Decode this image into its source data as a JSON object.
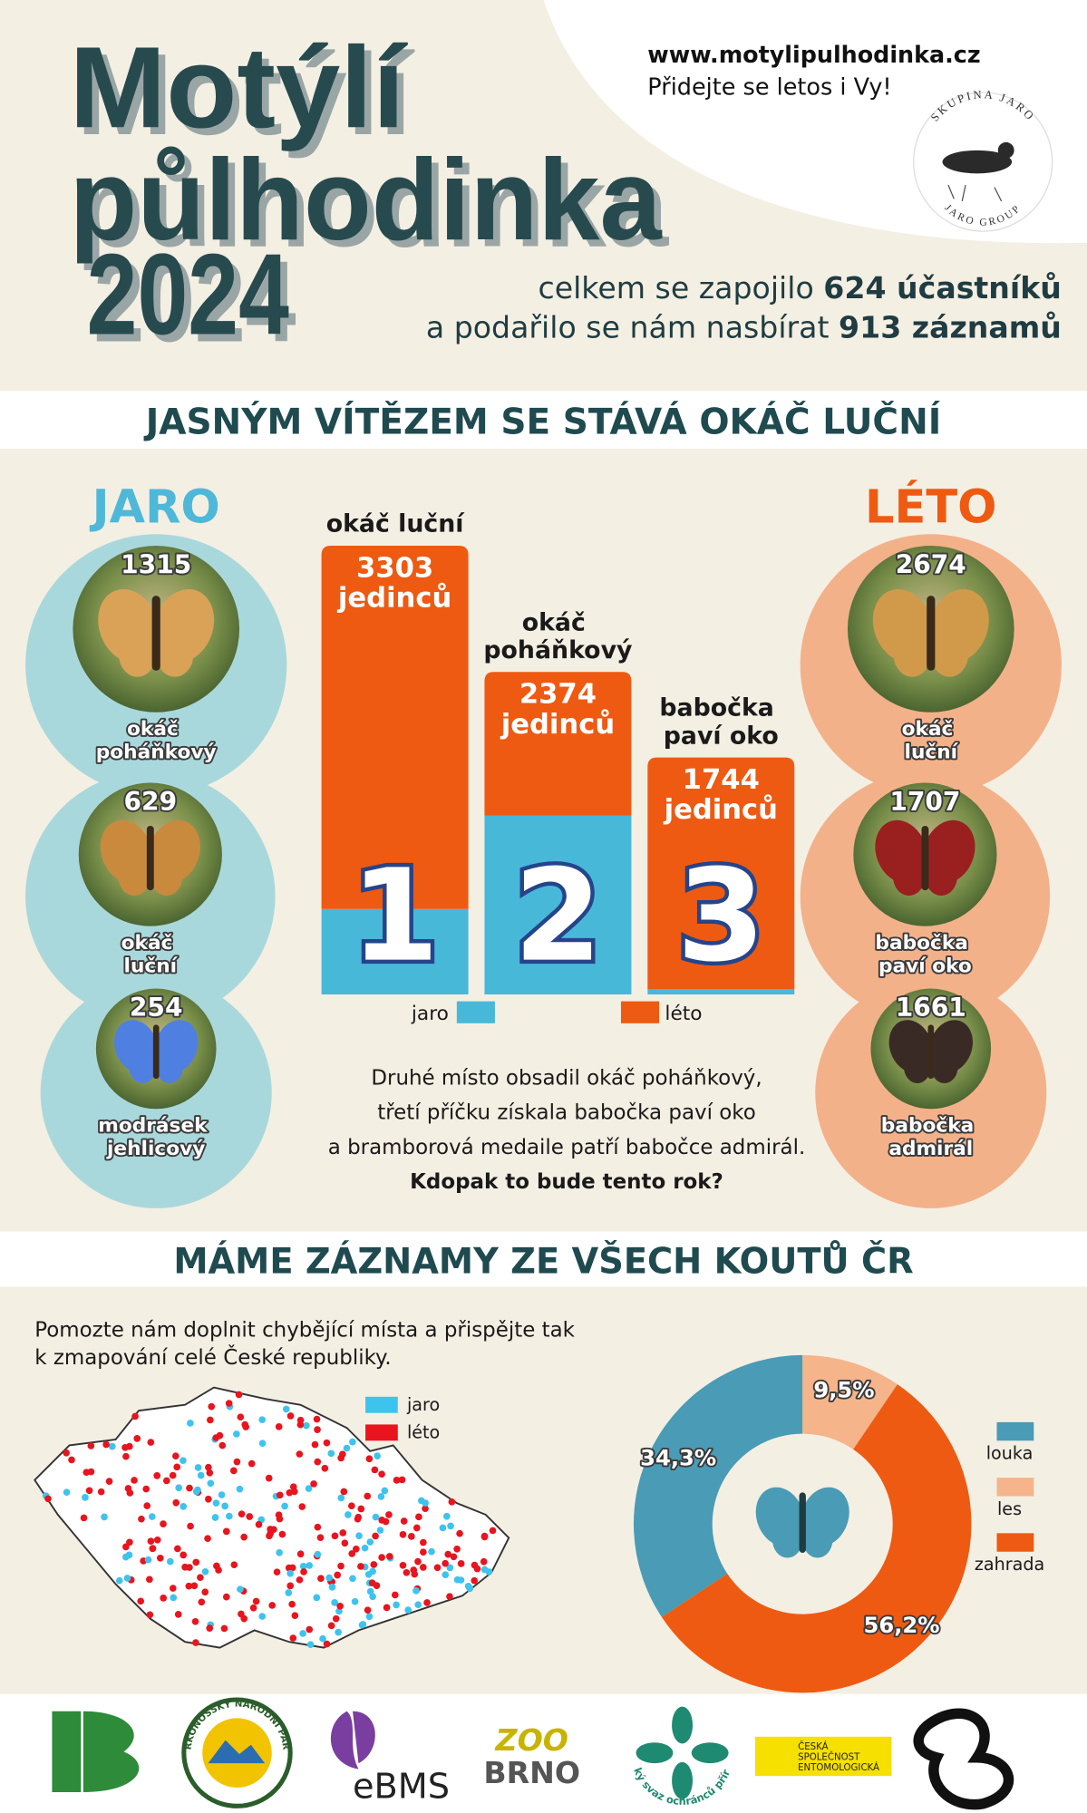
{
  "header": {
    "title": [
      "Motýlí",
      "půlhodinka",
      "2024"
    ],
    "url": "www.motylipulhodinka.cz",
    "tagline": "Přidejte se letos i Vy!",
    "logo_top": "SKUPINA JARO",
    "logo_bottom": "JARO GROUP",
    "summary": [
      {
        "text": "celkem se zapojilo",
        "strong": "624 účastníků"
      },
      {
        "text": "a podařilo se nám nasbírat",
        "strong": "913 záznamů"
      }
    ]
  },
  "winner_heading": "JASNÝM VÍTĚZEM SE STÁVÁ OKÁČ LUČNÍ",
  "seasons": [
    {
      "title": "JARO",
      "color": "#4fb8d8",
      "circle": "#a9d8dc",
      "items": [
        {
          "count": 1315,
          "name": "okáč poháňkový"
        },
        {
          "count": 629,
          "name": "okáč luční"
        },
        {
          "count": 254,
          "name": "modrásek jehlicový"
        }
      ]
    },
    {
      "title": "LÉTO",
      "color": "#ee5a12",
      "circle": "#f3b18a",
      "items": [
        {
          "count": 2674,
          "name": "okáč luční"
        },
        {
          "count": 1707,
          "name": "babočka paví oko"
        },
        {
          "count": 1661,
          "name": "babočka admirál"
        }
      ]
    }
  ],
  "chart_data": [
    {
      "type": "bar",
      "stacked": true,
      "categories": [
        "okáč luční",
        "okáč poháňkový",
        "babočka paví oko"
      ],
      "series": [
        {
          "name": "jaro",
          "color": "#48b8d8",
          "values": [
            629,
            1315,
            37
          ]
        },
        {
          "name": "léto",
          "color": "#ee5a12",
          "values": [
            2674,
            1059,
            1707
          ]
        }
      ],
      "totals": [
        3303,
        2374,
        1744
      ],
      "total_unit": "jedinců",
      "ranks": [
        "1",
        "2",
        "3"
      ]
    },
    {
      "type": "pie",
      "donut": true,
      "categories": [
        "louka",
        "les",
        "zahrada"
      ],
      "values": [
        34.3,
        9.5,
        56.2
      ],
      "value_labels": [
        "34,3%",
        "9,5%",
        "56,2%"
      ],
      "colors": [
        "#4a9bb5",
        "#f5b48a",
        "#ee5a12"
      ]
    }
  ],
  "paragraph": [
    "Druhé místo obsadil okáč poháňkový,",
    "třetí příčku získala babočka paví oko",
    "a bramborová medaile patří babočce admirál."
  ],
  "paragraph_strong": "Kdopak to bude tento rok?",
  "map_heading": "MÁME ZÁZNAMY ZE VŠECH KOUTŮ ČR",
  "map_text": [
    "Pomozte nám doplnit chybějící místa a přispějte tak",
    "k zmapování celé České republiky."
  ],
  "map_legend": [
    {
      "name": "jaro",
      "color": "#3ec3ef"
    },
    {
      "name": "léto",
      "color": "#e8141e"
    }
  ],
  "partners": {
    "krnap": "KRKONOŠSKÝ NÁRODNÍ PARK",
    "ebms": "eBMS",
    "zoo": [
      "ZOO",
      "BRNO"
    ],
    "csop": "český svaz ochránců přírody",
    "cse": [
      "ČESKÁ",
      "SPOLEČNOST",
      "ENTOMOLOGICKÁ"
    ]
  }
}
